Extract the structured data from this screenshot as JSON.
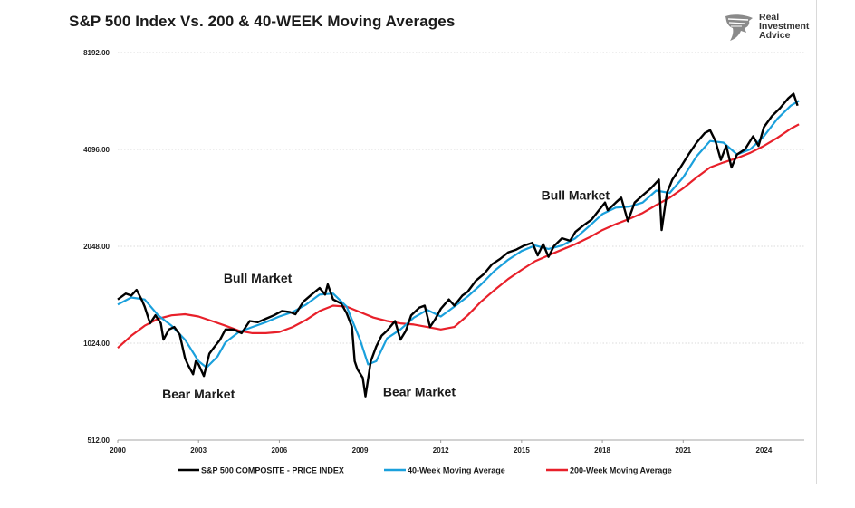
{
  "chart_data": {
    "type": "line",
    "title": "S&P 500 Index Vs. 200 & 40-WEEK Moving Averages",
    "y_scale": "log2",
    "ylim": [
      512,
      8192
    ],
    "y_ticks": [
      "8192.00",
      "4096.00",
      "2048.00",
      "1024.00",
      "512.00"
    ],
    "y_tick_values": [
      8192,
      4096,
      2048,
      1024,
      512
    ],
    "xlim": [
      2000,
      2025.5
    ],
    "x_ticks": [
      "2000",
      "2003",
      "2006",
      "2009",
      "2012",
      "2015",
      "2018",
      "2021",
      "2024"
    ],
    "x_tick_values": [
      2000,
      2003,
      2006,
      2009,
      2012,
      2015,
      2018,
      2021,
      2024
    ],
    "grid": "horizontal dotted",
    "legend_position": "bottom",
    "series": [
      {
        "name": "S&P 500 COMPOSITE - PRICE INDEX",
        "color": "#000000",
        "points": [
          [
            2000.0,
            1400
          ],
          [
            2000.3,
            1460
          ],
          [
            2000.5,
            1440
          ],
          [
            2000.7,
            1500
          ],
          [
            2000.9,
            1390
          ],
          [
            2001.0,
            1330
          ],
          [
            2001.2,
            1180
          ],
          [
            2001.4,
            1250
          ],
          [
            2001.6,
            1180
          ],
          [
            2001.7,
            1050
          ],
          [
            2001.9,
            1130
          ],
          [
            2002.1,
            1150
          ],
          [
            2002.3,
            1090
          ],
          [
            2002.5,
            920
          ],
          [
            2002.6,
            880
          ],
          [
            2002.8,
            820
          ],
          [
            2002.9,
            900
          ],
          [
            2003.0,
            880
          ],
          [
            2003.2,
            810
          ],
          [
            2003.4,
            950
          ],
          [
            2003.6,
            1000
          ],
          [
            2003.8,
            1050
          ],
          [
            2004.0,
            1130
          ],
          [
            2004.3,
            1130
          ],
          [
            2004.6,
            1100
          ],
          [
            2004.9,
            1200
          ],
          [
            2005.2,
            1190
          ],
          [
            2005.5,
            1220
          ],
          [
            2005.8,
            1250
          ],
          [
            2006.1,
            1290
          ],
          [
            2006.4,
            1280
          ],
          [
            2006.6,
            1260
          ],
          [
            2006.9,
            1380
          ],
          [
            2007.2,
            1450
          ],
          [
            2007.5,
            1520
          ],
          [
            2007.7,
            1450
          ],
          [
            2007.8,
            1560
          ],
          [
            2008.0,
            1400
          ],
          [
            2008.3,
            1360
          ],
          [
            2008.5,
            1270
          ],
          [
            2008.7,
            1150
          ],
          [
            2008.8,
            900
          ],
          [
            2008.9,
            850
          ],
          [
            2009.1,
            800
          ],
          [
            2009.2,
            700
          ],
          [
            2009.4,
            900
          ],
          [
            2009.6,
            1000
          ],
          [
            2009.8,
            1080
          ],
          [
            2010.0,
            1120
          ],
          [
            2010.3,
            1200
          ],
          [
            2010.5,
            1050
          ],
          [
            2010.7,
            1120
          ],
          [
            2010.9,
            1250
          ],
          [
            2011.2,
            1320
          ],
          [
            2011.4,
            1340
          ],
          [
            2011.6,
            1150
          ],
          [
            2011.8,
            1220
          ],
          [
            2012.0,
            1310
          ],
          [
            2012.3,
            1400
          ],
          [
            2012.5,
            1340
          ],
          [
            2012.8,
            1440
          ],
          [
            2013.0,
            1480
          ],
          [
            2013.3,
            1600
          ],
          [
            2013.6,
            1680
          ],
          [
            2013.9,
            1800
          ],
          [
            2014.2,
            1870
          ],
          [
            2014.5,
            1960
          ],
          [
            2014.8,
            2000
          ],
          [
            2015.1,
            2060
          ],
          [
            2015.4,
            2100
          ],
          [
            2015.6,
            1920
          ],
          [
            2015.8,
            2080
          ],
          [
            2016.0,
            1900
          ],
          [
            2016.2,
            2050
          ],
          [
            2016.5,
            2170
          ],
          [
            2016.8,
            2130
          ],
          [
            2017.0,
            2270
          ],
          [
            2017.3,
            2380
          ],
          [
            2017.6,
            2480
          ],
          [
            2017.9,
            2670
          ],
          [
            2018.1,
            2800
          ],
          [
            2018.2,
            2650
          ],
          [
            2018.5,
            2800
          ],
          [
            2018.7,
            2900
          ],
          [
            2018.95,
            2450
          ],
          [
            2019.2,
            2800
          ],
          [
            2019.5,
            2950
          ],
          [
            2019.8,
            3100
          ],
          [
            2020.1,
            3300
          ],
          [
            2020.2,
            2300
          ],
          [
            2020.4,
            3000
          ],
          [
            2020.6,
            3300
          ],
          [
            2020.9,
            3600
          ],
          [
            2021.2,
            3950
          ],
          [
            2021.5,
            4300
          ],
          [
            2021.8,
            4600
          ],
          [
            2022.0,
            4700
          ],
          [
            2022.2,
            4350
          ],
          [
            2022.4,
            3800
          ],
          [
            2022.6,
            4200
          ],
          [
            2022.8,
            3600
          ],
          [
            2023.0,
            3950
          ],
          [
            2023.3,
            4100
          ],
          [
            2023.6,
            4500
          ],
          [
            2023.8,
            4200
          ],
          [
            2024.0,
            4800
          ],
          [
            2024.3,
            5200
          ],
          [
            2024.6,
            5500
          ],
          [
            2024.9,
            5900
          ],
          [
            2025.1,
            6100
          ],
          [
            2025.25,
            5600
          ]
        ]
      },
      {
        "name": "40-Week Moving Average",
        "color": "#1aa0dc",
        "points": [
          [
            2000.0,
            1350
          ],
          [
            2000.5,
            1420
          ],
          [
            2001.0,
            1400
          ],
          [
            2001.5,
            1250
          ],
          [
            2002.0,
            1160
          ],
          [
            2002.5,
            1050
          ],
          [
            2003.0,
            900
          ],
          [
            2003.3,
            860
          ],
          [
            2003.7,
            930
          ],
          [
            2004.0,
            1030
          ],
          [
            2004.5,
            1110
          ],
          [
            2005.0,
            1150
          ],
          [
            2005.5,
            1190
          ],
          [
            2006.0,
            1240
          ],
          [
            2006.5,
            1280
          ],
          [
            2007.0,
            1350
          ],
          [
            2007.5,
            1450
          ],
          [
            2008.0,
            1460
          ],
          [
            2008.5,
            1330
          ],
          [
            2009.0,
            1050
          ],
          [
            2009.3,
            880
          ],
          [
            2009.6,
            900
          ],
          [
            2010.0,
            1060
          ],
          [
            2010.5,
            1130
          ],
          [
            2011.0,
            1230
          ],
          [
            2011.5,
            1300
          ],
          [
            2012.0,
            1240
          ],
          [
            2012.5,
            1330
          ],
          [
            2013.0,
            1430
          ],
          [
            2013.5,
            1560
          ],
          [
            2014.0,
            1720
          ],
          [
            2014.5,
            1860
          ],
          [
            2015.0,
            1980
          ],
          [
            2015.5,
            2060
          ],
          [
            2016.0,
            2010
          ],
          [
            2016.5,
            2060
          ],
          [
            2017.0,
            2170
          ],
          [
            2017.5,
            2360
          ],
          [
            2018.0,
            2580
          ],
          [
            2018.5,
            2700
          ],
          [
            2019.0,
            2720
          ],
          [
            2019.5,
            2800
          ],
          [
            2020.0,
            3050
          ],
          [
            2020.5,
            3000
          ],
          [
            2021.0,
            3350
          ],
          [
            2021.5,
            3900
          ],
          [
            2022.0,
            4350
          ],
          [
            2022.5,
            4300
          ],
          [
            2023.0,
            3950
          ],
          [
            2023.5,
            4100
          ],
          [
            2024.0,
            4500
          ],
          [
            2024.5,
            5100
          ],
          [
            2025.0,
            5600
          ],
          [
            2025.3,
            5800
          ]
        ]
      },
      {
        "name": "200-Week Moving Average",
        "color": "#e8202a",
        "points": [
          [
            2000.0,
            990
          ],
          [
            2000.5,
            1080
          ],
          [
            2001.0,
            1160
          ],
          [
            2001.5,
            1220
          ],
          [
            2002.0,
            1250
          ],
          [
            2002.5,
            1260
          ],
          [
            2003.0,
            1240
          ],
          [
            2003.5,
            1200
          ],
          [
            2004.0,
            1160
          ],
          [
            2004.5,
            1120
          ],
          [
            2005.0,
            1100
          ],
          [
            2005.5,
            1100
          ],
          [
            2006.0,
            1110
          ],
          [
            2006.5,
            1150
          ],
          [
            2007.0,
            1210
          ],
          [
            2007.5,
            1290
          ],
          [
            2008.0,
            1340
          ],
          [
            2008.5,
            1330
          ],
          [
            2009.0,
            1280
          ],
          [
            2009.5,
            1230
          ],
          [
            2010.0,
            1200
          ],
          [
            2010.5,
            1180
          ],
          [
            2011.0,
            1170
          ],
          [
            2011.5,
            1150
          ],
          [
            2012.0,
            1130
          ],
          [
            2012.5,
            1150
          ],
          [
            2013.0,
            1250
          ],
          [
            2013.5,
            1380
          ],
          [
            2014.0,
            1500
          ],
          [
            2014.5,
            1620
          ],
          [
            2015.0,
            1730
          ],
          [
            2015.5,
            1840
          ],
          [
            2016.0,
            1920
          ],
          [
            2016.5,
            2000
          ],
          [
            2017.0,
            2080
          ],
          [
            2017.5,
            2180
          ],
          [
            2018.0,
            2300
          ],
          [
            2018.5,
            2400
          ],
          [
            2019.0,
            2490
          ],
          [
            2019.5,
            2600
          ],
          [
            2020.0,
            2750
          ],
          [
            2020.5,
            2900
          ],
          [
            2021.0,
            3100
          ],
          [
            2021.5,
            3350
          ],
          [
            2022.0,
            3600
          ],
          [
            2022.5,
            3730
          ],
          [
            2023.0,
            3850
          ],
          [
            2023.5,
            4000
          ],
          [
            2024.0,
            4200
          ],
          [
            2024.5,
            4450
          ],
          [
            2025.0,
            4750
          ],
          [
            2025.3,
            4900
          ]
        ]
      }
    ],
    "annotations": [
      {
        "text": "Bull Market",
        "x": 2005.2,
        "y": 1580
      },
      {
        "text": "Bear Market",
        "x": 2003.0,
        "y": 690
      },
      {
        "text": "Bear Market",
        "x": 2011.2,
        "y": 700
      },
      {
        "text": "Bull Market",
        "x": 2017.0,
        "y": 2860
      }
    ]
  },
  "logo": {
    "line1": "Real",
    "line2": "Investment",
    "line3": "Advice"
  }
}
